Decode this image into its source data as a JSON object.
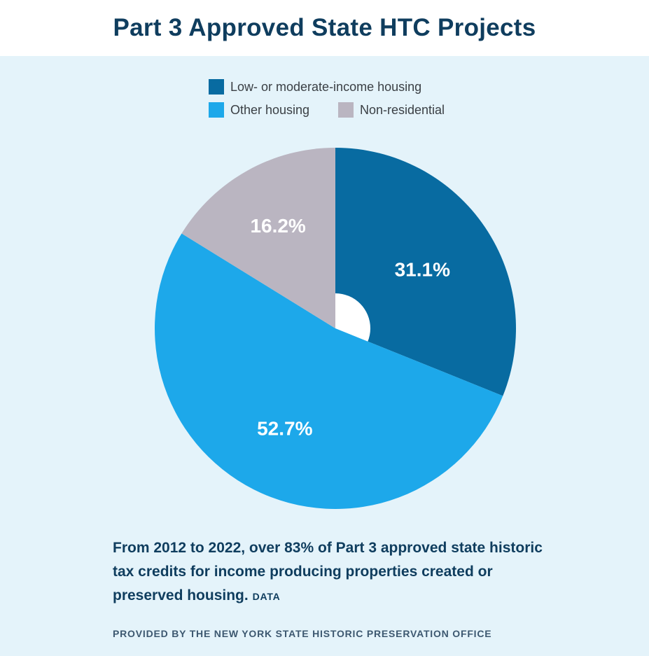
{
  "title": "Part 3 Approved State HTC Projects",
  "colors": {
    "background_panel": "#e4f3fa",
    "title_text": "#0f3d5e",
    "low_moderate_income": "#086ba1",
    "other_housing": "#1da8ea",
    "non_residential": "#bab5c1"
  },
  "chart_data": {
    "type": "pie",
    "title": "Part 3 Approved State HTC Projects",
    "legend_position": "top-center",
    "donut_hole": true,
    "labels": [
      "Low- or moderate-income housing",
      "Other housing",
      "Non-residential"
    ],
    "values": [
      31.1,
      52.7,
      16.2
    ],
    "value_labels": [
      "31.1%",
      "52.7%",
      "16.2%"
    ],
    "unit": "%",
    "start_angle": "12 o'clock",
    "direction": "clockwise"
  },
  "caption": {
    "main": "From 2012 to 2022, over 83% of Part 3 approved state historic tax credits for income producing properties created or preserved housing.",
    "data_word": "DATA",
    "credit": "PROVIDED BY THE NEW YORK STATE HISTORIC PRESERVATION OFFICE"
  }
}
